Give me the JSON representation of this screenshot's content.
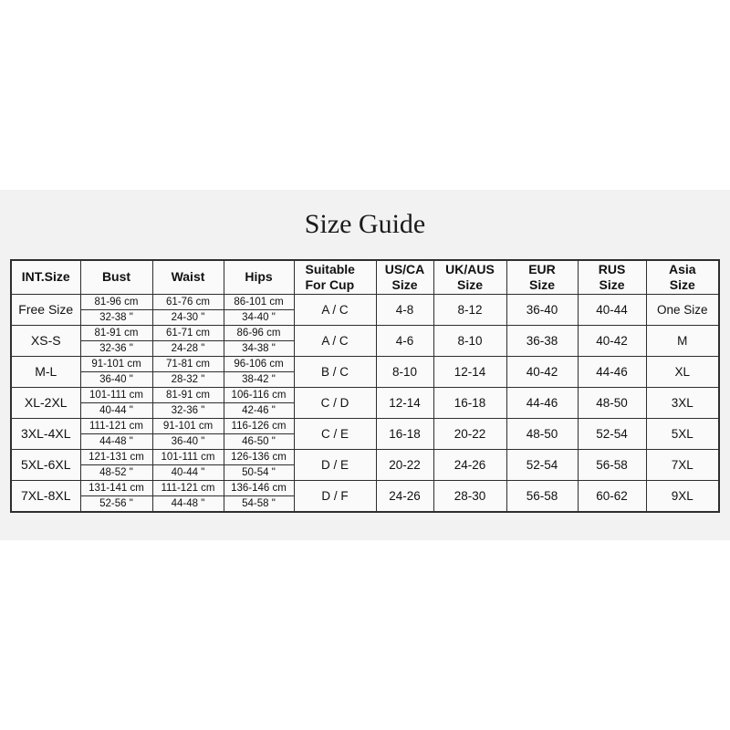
{
  "title": "Size Guide",
  "colors": {
    "page_background": "#ffffff",
    "panel_background": "#f2f2f2",
    "cell_background": "#fafafa",
    "border": "#2e2e2e",
    "text": "#111111"
  },
  "table": {
    "columns": [
      {
        "id": "int_size",
        "label": "INT.Size"
      },
      {
        "id": "bust",
        "label": "Bust"
      },
      {
        "id": "waist",
        "label": "Waist"
      },
      {
        "id": "hips",
        "label": "Hips"
      },
      {
        "id": "cup",
        "label": "Suitable\nFor Cup"
      },
      {
        "id": "us_ca",
        "label": "US/CA\nSize"
      },
      {
        "id": "uk_aus",
        "label": "UK/AUS\nSize"
      },
      {
        "id": "eur",
        "label": "EUR\nSize"
      },
      {
        "id": "rus",
        "label": "RUS\nSize"
      },
      {
        "id": "asia",
        "label": "Asia\nSize"
      }
    ],
    "rows": [
      {
        "int_size": "Free Size",
        "bust_cm": "81-96 cm",
        "bust_in": "32-38 \"",
        "waist_cm": "61-76 cm",
        "waist_in": "24-30 \"",
        "hips_cm": "86-101 cm",
        "hips_in": "34-40 \"",
        "cup": "A / C",
        "us_ca": "4-8",
        "uk_aus": "8-12",
        "eur": "36-40",
        "rus": "40-44",
        "asia": "One Size"
      },
      {
        "int_size": "XS-S",
        "bust_cm": "81-91 cm",
        "bust_in": "32-36 \"",
        "waist_cm": "61-71 cm",
        "waist_in": "24-28 \"",
        "hips_cm": "86-96 cm",
        "hips_in": "34-38 \"",
        "cup": "A / C",
        "us_ca": "4-6",
        "uk_aus": "8-10",
        "eur": "36-38",
        "rus": "40-42",
        "asia": "M"
      },
      {
        "int_size": "M-L",
        "bust_cm": "91-101 cm",
        "bust_in": "36-40 \"",
        "waist_cm": "71-81 cm",
        "waist_in": "28-32 \"",
        "hips_cm": "96-106 cm",
        "hips_in": "38-42 \"",
        "cup": "B / C",
        "us_ca": "8-10",
        "uk_aus": "12-14",
        "eur": "40-42",
        "rus": "44-46",
        "asia": "XL"
      },
      {
        "int_size": "XL-2XL",
        "bust_cm": "101-111 cm",
        "bust_in": "40-44 \"",
        "waist_cm": "81-91 cm",
        "waist_in": "32-36 \"",
        "hips_cm": "106-116 cm",
        "hips_in": "42-46 \"",
        "cup": "C / D",
        "us_ca": "12-14",
        "uk_aus": "16-18",
        "eur": "44-46",
        "rus": "48-50",
        "asia": "3XL"
      },
      {
        "int_size": "3XL-4XL",
        "bust_cm": "111-121 cm",
        "bust_in": "44-48 \"",
        "waist_cm": "91-101 cm",
        "waist_in": "36-40 \"",
        "hips_cm": "116-126 cm",
        "hips_in": "46-50 \"",
        "cup": "C / E",
        "us_ca": "16-18",
        "uk_aus": "20-22",
        "eur": "48-50",
        "rus": "52-54",
        "asia": "5XL"
      },
      {
        "int_size": "5XL-6XL",
        "bust_cm": "121-131 cm",
        "bust_in": "48-52 \"",
        "waist_cm": "101-111 cm",
        "waist_in": "40-44 \"",
        "hips_cm": "126-136 cm",
        "hips_in": "50-54 \"",
        "cup": "D / E",
        "us_ca": "20-22",
        "uk_aus": "24-26",
        "eur": "52-54",
        "rus": "56-58",
        "asia": "7XL"
      },
      {
        "int_size": "7XL-8XL",
        "bust_cm": "131-141 cm",
        "bust_in": "52-56 \"",
        "waist_cm": "111-121 cm",
        "waist_in": "44-48 \"",
        "hips_cm": "136-146 cm",
        "hips_in": "54-58 \"",
        "cup": "D / F",
        "us_ca": "24-26",
        "uk_aus": "28-30",
        "eur": "56-58",
        "rus": "60-62",
        "asia": "9XL"
      }
    ]
  }
}
